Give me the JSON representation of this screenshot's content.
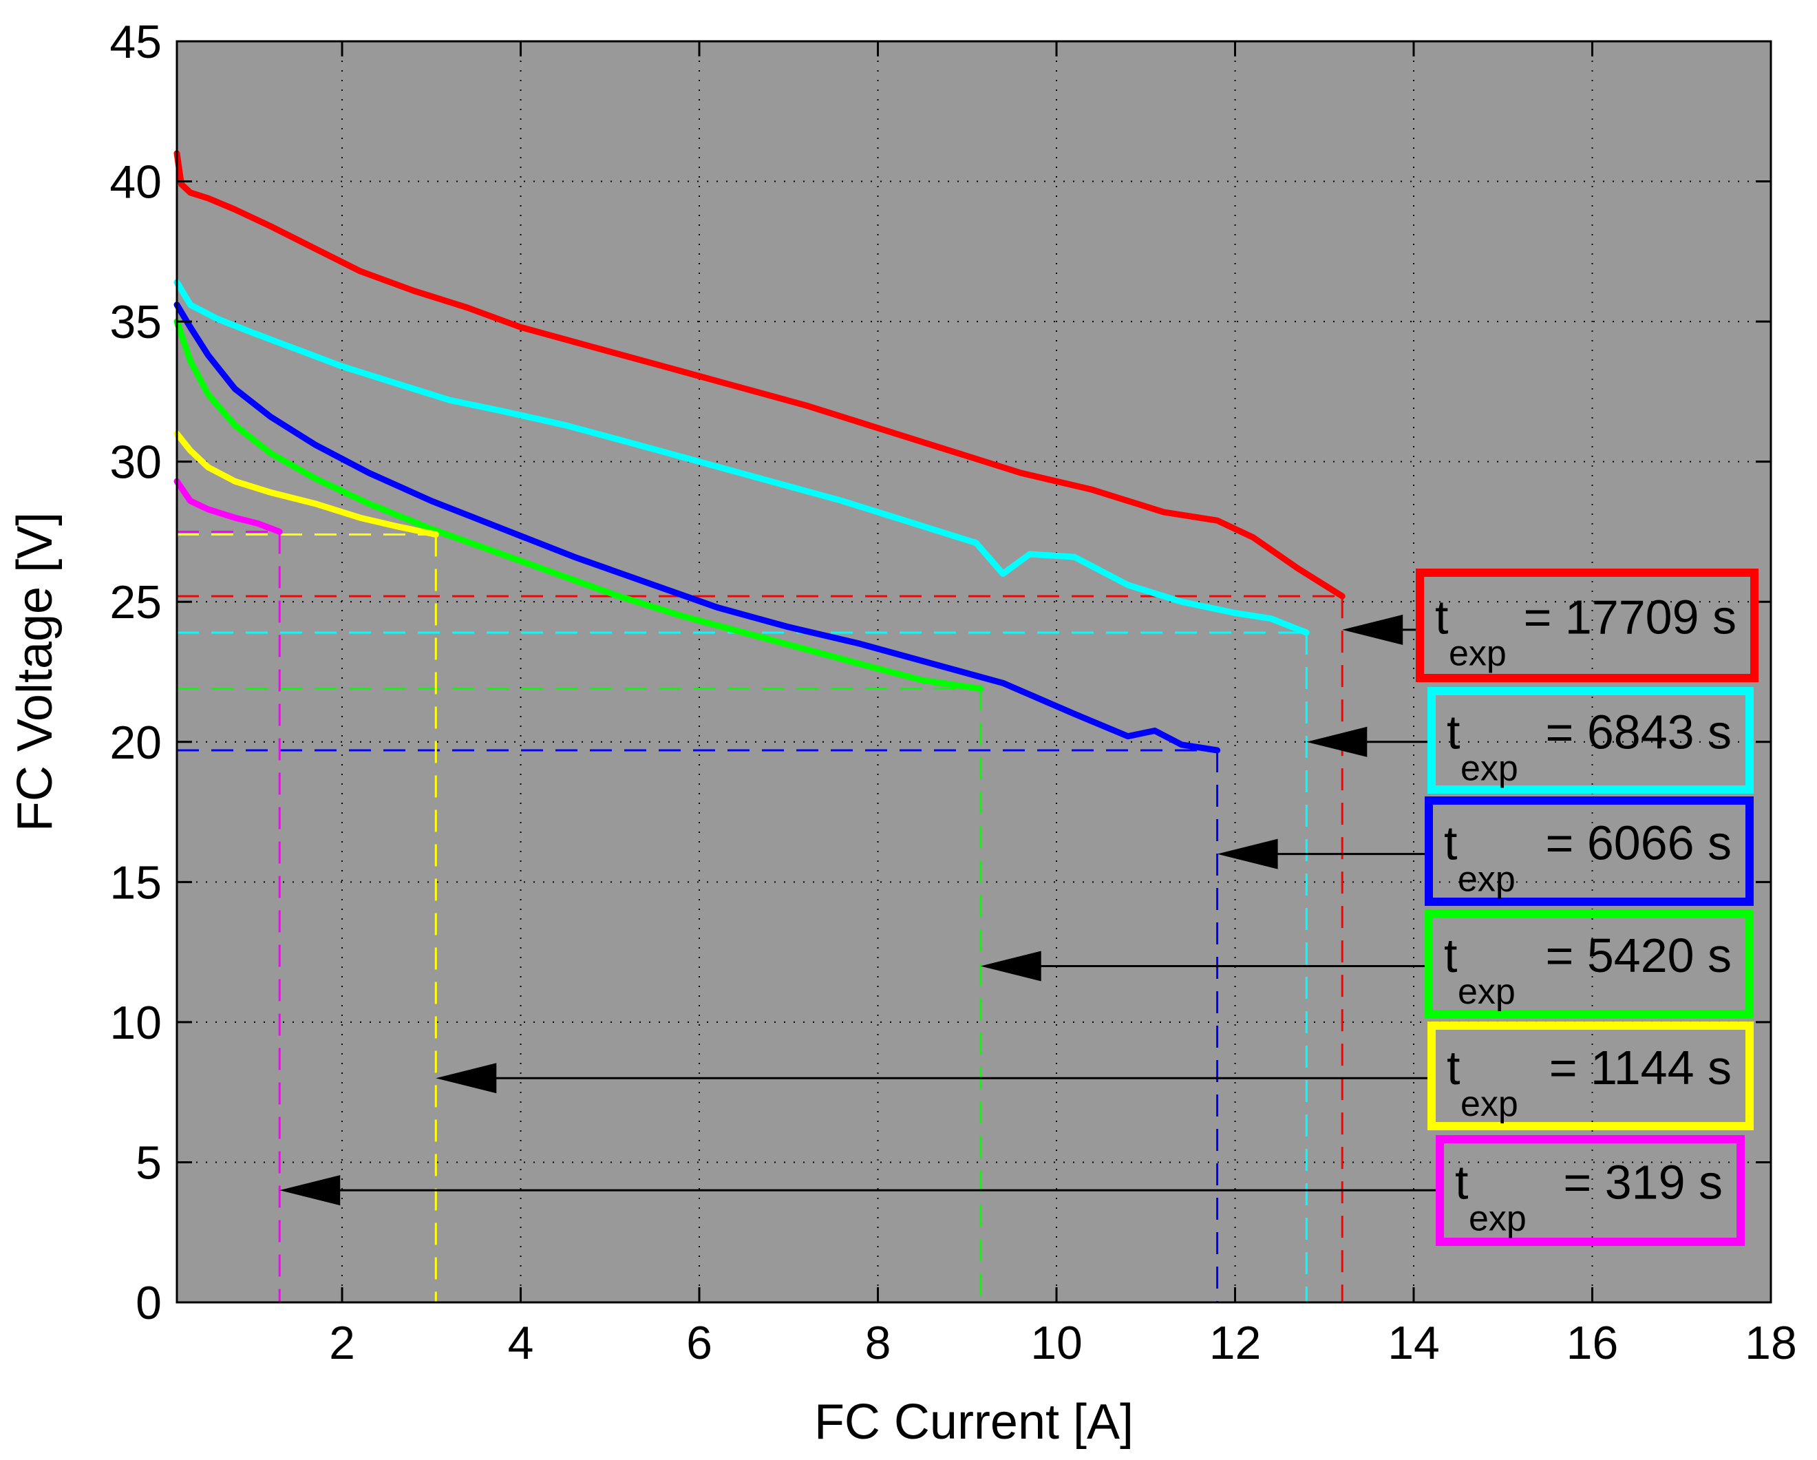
{
  "chart_data": {
    "type": "line",
    "title": "",
    "xlabel": "FC Current [A]",
    "ylabel": "FC Voltage [V]",
    "xlim": [
      0.15,
      18
    ],
    "ylim": [
      0,
      45
    ],
    "xticks": [
      2,
      4,
      6,
      8,
      10,
      12,
      14,
      16,
      18
    ],
    "yticks": [
      0,
      5,
      10,
      15,
      20,
      25,
      30,
      35,
      40,
      45
    ],
    "grid": true,
    "background": "#999999",
    "legend_placement": "right, stacked boxes with arrows pointing to curve end points",
    "series": [
      {
        "color": "#ff0000",
        "label_prefix": "t",
        "label_sub": "exp",
        "label_value": "= 17709 s",
        "end_current": 13.2,
        "end_voltage": 25.2,
        "arrow_voltage": 24.0,
        "x": [
          0.15,
          0.2,
          0.3,
          0.5,
          0.8,
          1.2,
          1.7,
          2.2,
          2.8,
          3.4,
          4.0,
          4.8,
          5.6,
          6.4,
          7.2,
          8.0,
          8.8,
          9.6,
          10.4,
          11.2,
          11.8,
          12.2,
          12.7,
          13.2
        ],
        "y": [
          41.0,
          39.9,
          39.6,
          39.4,
          39.0,
          38.4,
          37.6,
          36.8,
          36.1,
          35.5,
          34.8,
          34.1,
          33.4,
          32.7,
          32.0,
          31.2,
          30.4,
          29.6,
          29.0,
          28.2,
          27.9,
          27.3,
          26.2,
          25.2
        ]
      },
      {
        "color": "#00ffff",
        "label_prefix": "t",
        "label_sub": "exp",
        "label_value": "=  6843 s",
        "end_current": 12.8,
        "end_voltage": 23.9,
        "arrow_voltage": 20.0,
        "x": [
          0.15,
          0.3,
          0.6,
          1.0,
          1.5,
          2.0,
          2.6,
          3.2,
          3.8,
          4.5,
          5.2,
          6.0,
          6.8,
          7.6,
          8.4,
          9.1,
          9.4,
          9.7,
          10.2,
          10.8,
          11.4,
          12.0,
          12.4,
          12.8
        ],
        "y": [
          36.4,
          35.6,
          35.1,
          34.6,
          34.0,
          33.4,
          32.8,
          32.2,
          31.8,
          31.3,
          30.7,
          30.0,
          29.3,
          28.6,
          27.8,
          27.1,
          26.0,
          26.7,
          26.6,
          25.6,
          25.0,
          24.6,
          24.4,
          23.9
        ]
      },
      {
        "color": "#0000ff",
        "label_prefix": "t",
        "label_sub": "exp",
        "label_value": "=  6066 s",
        "end_current": 11.8,
        "end_voltage": 19.7,
        "arrow_voltage": 16.0,
        "x": [
          0.15,
          0.3,
          0.5,
          0.8,
          1.2,
          1.7,
          2.3,
          3.0,
          3.8,
          4.6,
          5.4,
          6.2,
          7.0,
          7.8,
          8.6,
          9.4,
          10.2,
          10.8,
          11.1,
          11.4,
          11.8
        ],
        "y": [
          35.6,
          34.8,
          33.8,
          32.6,
          31.6,
          30.6,
          29.6,
          28.6,
          27.6,
          26.6,
          25.7,
          24.8,
          24.1,
          23.5,
          22.8,
          22.1,
          21.0,
          20.2,
          20.4,
          19.9,
          19.7
        ]
      },
      {
        "color": "#00ff00",
        "label_prefix": "t",
        "label_sub": "exp",
        "label_value": "=  5420 s",
        "end_current": 9.15,
        "end_voltage": 21.9,
        "arrow_voltage": 12.0,
        "x": [
          0.15,
          0.3,
          0.5,
          0.8,
          1.2,
          1.7,
          2.3,
          3.0,
          3.7,
          4.4,
          5.1,
          5.8,
          6.5,
          7.2,
          7.9,
          8.5,
          9.15
        ],
        "y": [
          35.0,
          33.6,
          32.4,
          31.3,
          30.3,
          29.4,
          28.5,
          27.6,
          26.8,
          26.0,
          25.2,
          24.5,
          23.9,
          23.3,
          22.7,
          22.2,
          21.9
        ]
      },
      {
        "color": "#ffff00",
        "label_prefix": "t",
        "label_sub": "exp",
        "label_value": "=  1144 s",
        "end_current": 3.05,
        "end_voltage": 27.4,
        "arrow_voltage": 8.0,
        "x": [
          0.15,
          0.3,
          0.5,
          0.8,
          1.2,
          1.7,
          2.2,
          2.6,
          3.05
        ],
        "y": [
          31.0,
          30.4,
          29.8,
          29.3,
          28.9,
          28.5,
          28.0,
          27.7,
          27.4
        ]
      },
      {
        "color": "#ff00ff",
        "label_prefix": "t",
        "label_sub": "exp",
        "label_value": "=   319 s",
        "end_current": 1.3,
        "end_voltage": 27.5,
        "arrow_voltage": 4.0,
        "x": [
          0.15,
          0.3,
          0.5,
          0.8,
          1.05,
          1.3
        ],
        "y": [
          29.3,
          28.6,
          28.3,
          28.0,
          27.8,
          27.5
        ]
      }
    ]
  }
}
